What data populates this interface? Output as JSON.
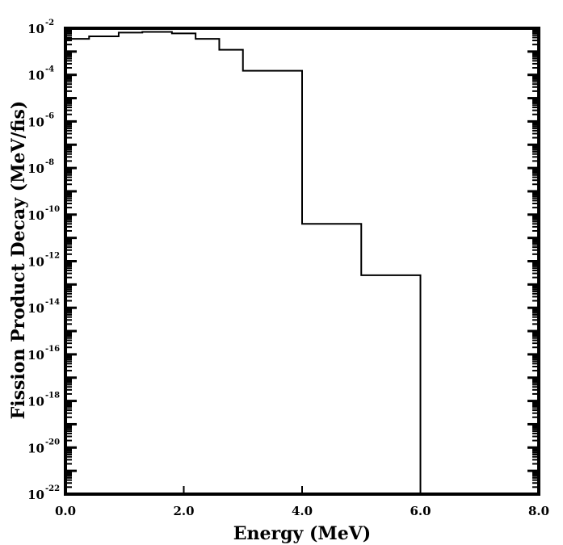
{
  "chart_data": {
    "type": "line",
    "title": "",
    "xlabel": "Energy (MeV)",
    "ylabel": "Fission Product Decay (MeV/fis)",
    "x_scale": "linear",
    "y_scale": "log",
    "xlim": [
      0,
      8
    ],
    "ylim": [
      1e-22,
      0.01
    ],
    "x_ticks": [
      "0.0",
      "2.0",
      "4.0",
      "6.0",
      "8.0"
    ],
    "y_ticks": [
      {
        "base": "10",
        "exp": "-22"
      },
      {
        "base": "10",
        "exp": "-20"
      },
      {
        "base": "10",
        "exp": "-18"
      },
      {
        "base": "10",
        "exp": "-16"
      },
      {
        "base": "10",
        "exp": "-14"
      },
      {
        "base": "10",
        "exp": "-12"
      },
      {
        "base": "10",
        "exp": "-10"
      },
      {
        "base": "10",
        "exp": "-8"
      },
      {
        "base": "10",
        "exp": "-6"
      },
      {
        "base": "10",
        "exp": "-4"
      },
      {
        "base": "10",
        "exp": "-2"
      }
    ],
    "grid": false,
    "legend": "none",
    "colors": {
      "line": "#000000",
      "frame": "#000000"
    },
    "series": [
      {
        "style": "histogram",
        "bins": [
          {
            "x0": 0.0,
            "x1": 0.4,
            "y": 0.0035
          },
          {
            "x0": 0.4,
            "x1": 0.9,
            "y": 0.0045
          },
          {
            "x0": 0.9,
            "x1": 1.3,
            "y": 0.0065
          },
          {
            "x0": 1.3,
            "x1": 1.8,
            "y": 0.007
          },
          {
            "x0": 1.8,
            "x1": 2.2,
            "y": 0.006
          },
          {
            "x0": 2.2,
            "x1": 2.6,
            "y": 0.0035
          },
          {
            "x0": 2.6,
            "x1": 3.0,
            "y": 0.0012
          },
          {
            "x0": 3.0,
            "x1": 4.0,
            "y": 0.00015
          },
          {
            "x0": 4.0,
            "x1": 5.0,
            "y": 4e-11
          },
          {
            "x0": 5.0,
            "x1": 6.0,
            "y": 2.5e-13
          }
        ]
      }
    ]
  }
}
